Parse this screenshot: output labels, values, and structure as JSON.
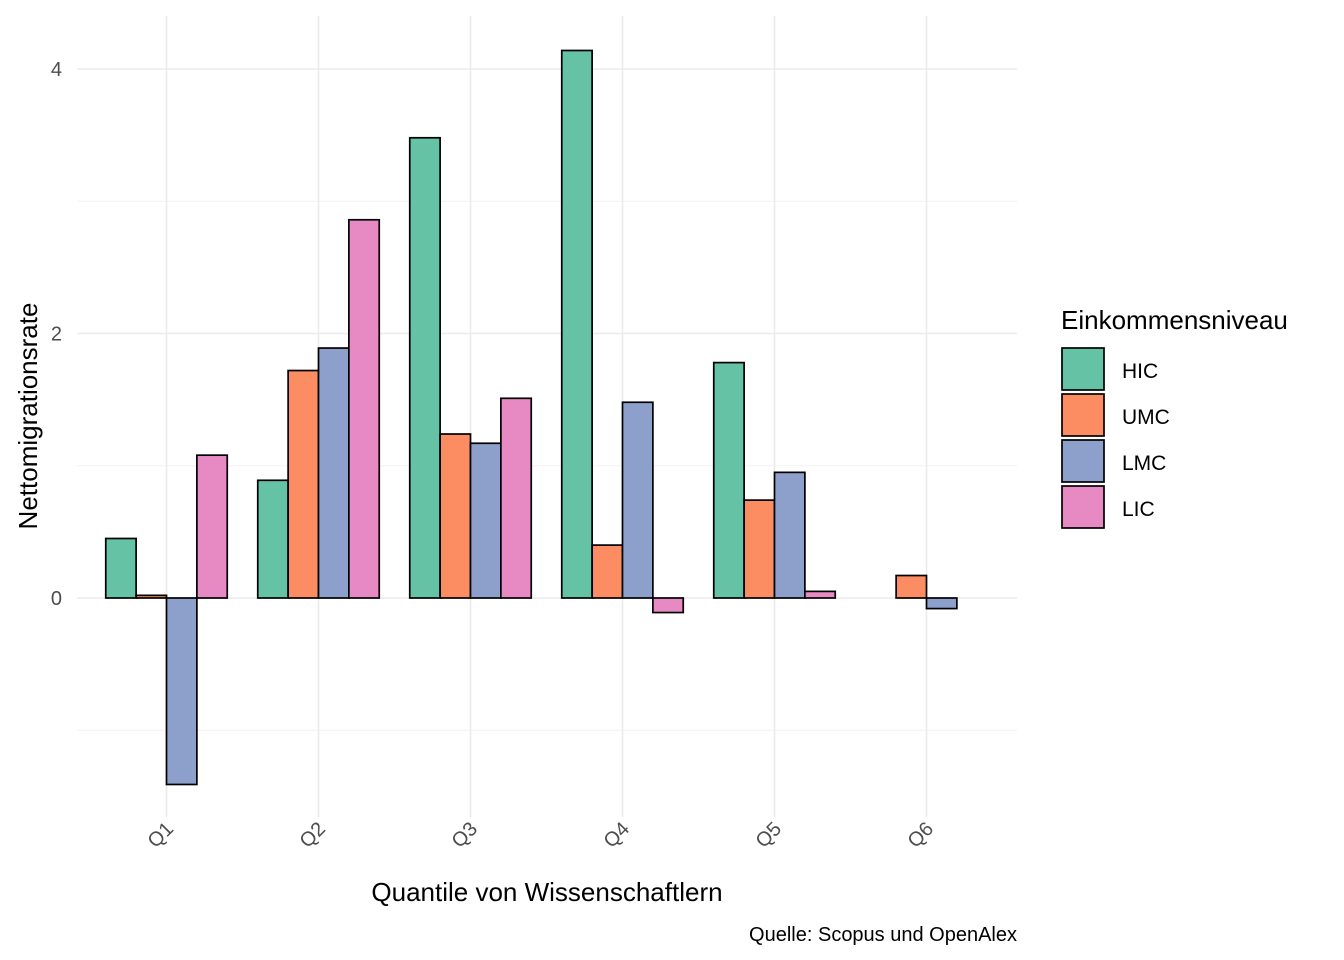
{
  "chart_data": {
    "type": "bar",
    "categories": [
      "Q1",
      "Q2",
      "Q3",
      "Q4",
      "Q5",
      "Q6"
    ],
    "series": [
      {
        "name": "HIC",
        "color": "#66c2a5",
        "values": [
          0.45,
          0.89,
          3.48,
          4.14,
          1.78,
          0.0
        ]
      },
      {
        "name": "UMC",
        "color": "#fc8d62",
        "values": [
          0.02,
          1.72,
          1.24,
          0.4,
          0.74,
          0.17
        ]
      },
      {
        "name": "LMC",
        "color": "#8da0cb",
        "values": [
          -1.41,
          1.89,
          1.17,
          1.48,
          0.95,
          -0.08
        ]
      },
      {
        "name": "LIC",
        "color": "#e78ac3",
        "values": [
          1.08,
          2.86,
          1.51,
          -0.11,
          0.05,
          0.0
        ]
      }
    ],
    "xlabel": "Quantile von Wissenschaftlern",
    "ylabel": "Nettomigrationsrate",
    "caption": "Quelle: Scopus und OpenAlex",
    "legend_title": "Einkommensniveau",
    "legend_position": "right",
    "yticks": [
      0,
      2,
      4
    ],
    "ylim": [
      -1.65,
      4.4
    ],
    "grid": true
  }
}
